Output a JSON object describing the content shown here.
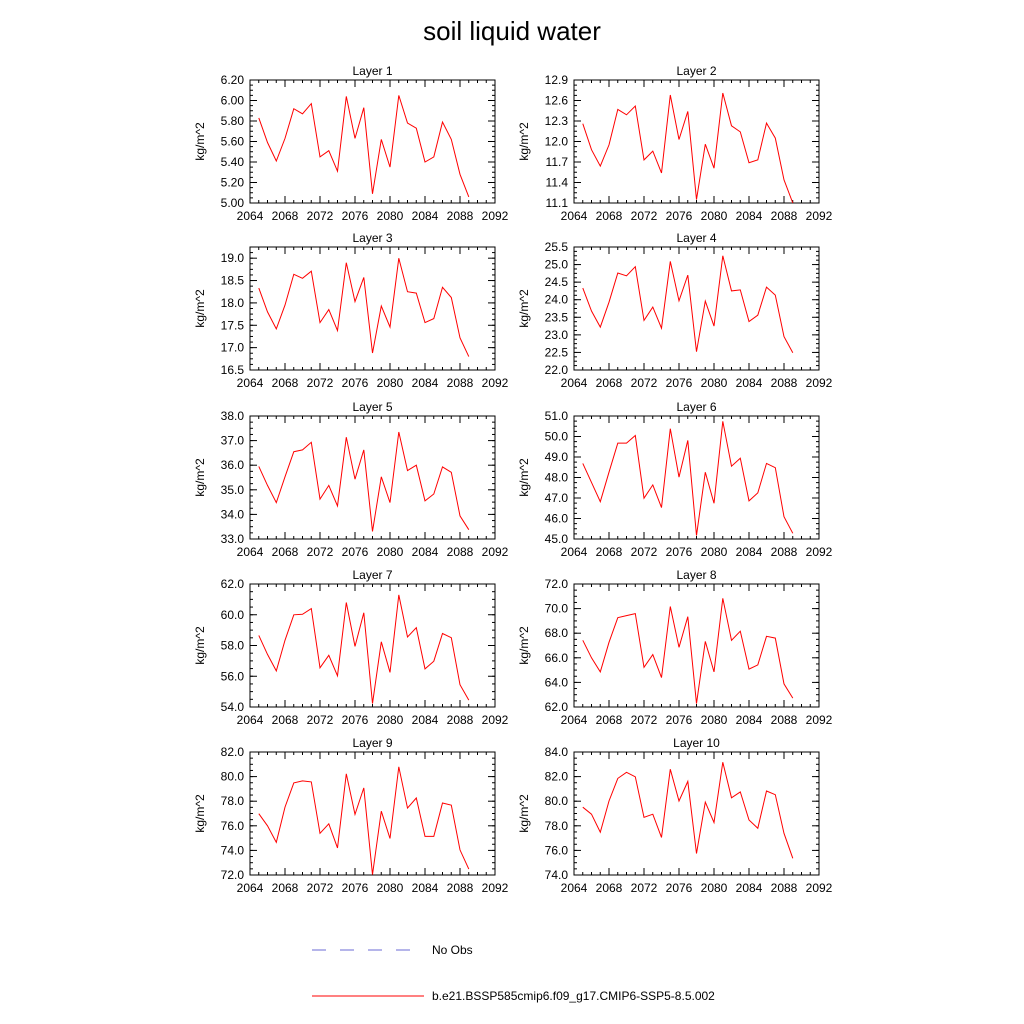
{
  "figure": {
    "title": "soil liquid water",
    "legend": [
      {
        "label": "No Obs",
        "color": "#6b6bd6",
        "style": "dashed"
      },
      {
        "label": "b.e21.BSSP585cmip6.f09_g17.CMIP6-SSP5-8.5.002",
        "color": "#ff0000",
        "style": "solid"
      }
    ]
  },
  "chart_data": [
    {
      "type": "line",
      "title": "Layer 1",
      "ylabel": "kg/m^2",
      "xlim": [
        2064,
        2092
      ],
      "ylim": [
        5.0,
        6.2
      ],
      "decimals": 2,
      "yticks": [
        5.0,
        5.2,
        5.4,
        5.6,
        5.8,
        6.0,
        6.2
      ],
      "xticks": [
        2064,
        2068,
        2072,
        2076,
        2080,
        2084,
        2088,
        2092
      ],
      "x": [
        2065,
        2066,
        2067,
        2068,
        2069,
        2070,
        2071,
        2072,
        2073,
        2074,
        2075,
        2076,
        2077,
        2078,
        2079,
        2080,
        2081,
        2082,
        2083,
        2084,
        2085,
        2086,
        2087,
        2088,
        2089
      ],
      "y": [
        5.83,
        5.59,
        5.41,
        5.63,
        5.92,
        5.87,
        5.97,
        5.45,
        5.51,
        5.31,
        6.04,
        5.63,
        5.93,
        5.09,
        5.62,
        5.35,
        6.05,
        5.78,
        5.73,
        5.4,
        5.45,
        5.79,
        5.62,
        5.28,
        5.06
      ]
    },
    {
      "type": "line",
      "title": "Layer 2",
      "ylabel": "kg/m^2",
      "xlim": [
        2064,
        2092
      ],
      "ylim": [
        11.1,
        12.9
      ],
      "decimals": 1,
      "yticks": [
        11.1,
        11.4,
        11.7,
        12.0,
        12.3,
        12.6,
        12.9
      ],
      "xticks": [
        2064,
        2068,
        2072,
        2076,
        2080,
        2084,
        2088,
        2092
      ],
      "x": [
        2065,
        2066,
        2067,
        2068,
        2069,
        2070,
        2071,
        2072,
        2073,
        2074,
        2075,
        2076,
        2077,
        2078,
        2079,
        2080,
        2081,
        2082,
        2083,
        2084,
        2085,
        2086,
        2087,
        2088,
        2089
      ],
      "y": [
        12.26,
        11.88,
        11.64,
        11.95,
        12.47,
        12.39,
        12.52,
        11.73,
        11.86,
        11.54,
        12.68,
        12.03,
        12.44,
        11.15,
        11.96,
        11.61,
        12.71,
        12.23,
        12.14,
        11.69,
        11.73,
        12.27,
        12.05,
        11.44,
        11.1
      ]
    },
    {
      "type": "line",
      "title": "Layer 3",
      "ylabel": "kg/m^2",
      "xlim": [
        2064,
        2092
      ],
      "ylim": [
        16.5,
        19.25
      ],
      "decimals": 1,
      "yticks": [
        16.5,
        17.0,
        17.5,
        18.0,
        18.5,
        19.0
      ],
      "xticks": [
        2064,
        2068,
        2072,
        2076,
        2080,
        2084,
        2088,
        2092
      ],
      "x": [
        2065,
        2066,
        2067,
        2068,
        2069,
        2070,
        2071,
        2072,
        2073,
        2074,
        2075,
        2076,
        2077,
        2078,
        2079,
        2080,
        2081,
        2082,
        2083,
        2084,
        2085,
        2086,
        2087,
        2088,
        2089
      ],
      "y": [
        18.33,
        17.8,
        17.42,
        17.95,
        18.64,
        18.55,
        18.71,
        17.56,
        17.85,
        17.38,
        18.9,
        18.03,
        18.57,
        16.88,
        17.93,
        17.46,
        19.0,
        18.25,
        18.22,
        17.56,
        17.65,
        18.35,
        18.12,
        17.22,
        16.8
      ]
    },
    {
      "type": "line",
      "title": "Layer 4",
      "ylabel": "kg/m^2",
      "xlim": [
        2064,
        2092
      ],
      "ylim": [
        22.0,
        25.5
      ],
      "decimals": 1,
      "yticks": [
        22.0,
        22.5,
        23.0,
        23.5,
        24.0,
        24.5,
        25.0,
        25.5
      ],
      "xticks": [
        2064,
        2068,
        2072,
        2076,
        2080,
        2084,
        2088,
        2092
      ],
      "x": [
        2065,
        2066,
        2067,
        2068,
        2069,
        2070,
        2071,
        2072,
        2073,
        2074,
        2075,
        2076,
        2077,
        2078,
        2079,
        2080,
        2081,
        2082,
        2083,
        2084,
        2085,
        2086,
        2087,
        2088,
        2089
      ],
      "y": [
        24.33,
        23.68,
        23.22,
        23.93,
        24.76,
        24.68,
        24.94,
        23.41,
        23.79,
        23.19,
        25.09,
        23.97,
        24.7,
        22.52,
        23.96,
        23.25,
        25.25,
        24.25,
        24.28,
        23.38,
        23.56,
        24.36,
        24.13,
        22.95,
        22.49
      ]
    },
    {
      "type": "line",
      "title": "Layer 5",
      "ylabel": "kg/m^2",
      "xlim": [
        2064,
        2092
      ],
      "ylim": [
        33.0,
        38.0
      ],
      "decimals": 1,
      "yticks": [
        33.0,
        34.0,
        35.0,
        36.0,
        37.0,
        38.0
      ],
      "xticks": [
        2064,
        2068,
        2072,
        2076,
        2080,
        2084,
        2088,
        2092
      ],
      "x": [
        2065,
        2066,
        2067,
        2068,
        2069,
        2070,
        2071,
        2072,
        2073,
        2074,
        2075,
        2076,
        2077,
        2078,
        2079,
        2080,
        2081,
        2082,
        2083,
        2084,
        2085,
        2086,
        2087,
        2088,
        2089
      ],
      "y": [
        35.95,
        35.18,
        34.48,
        35.53,
        36.55,
        36.62,
        36.93,
        34.62,
        35.18,
        34.34,
        37.14,
        35.43,
        36.62,
        33.31,
        35.53,
        34.48,
        37.35,
        35.78,
        36.0,
        34.55,
        34.83,
        35.93,
        35.71,
        33.94,
        33.38
      ]
    },
    {
      "type": "line",
      "title": "Layer 6",
      "ylabel": "kg/m^2",
      "xlim": [
        2064,
        2092
      ],
      "ylim": [
        45.0,
        51.0
      ],
      "decimals": 1,
      "yticks": [
        45.0,
        46.0,
        47.0,
        48.0,
        49.0,
        50.0,
        51.0
      ],
      "xticks": [
        2064,
        2068,
        2072,
        2076,
        2080,
        2084,
        2088,
        2092
      ],
      "x": [
        2065,
        2066,
        2067,
        2068,
        2069,
        2070,
        2071,
        2072,
        2073,
        2074,
        2075,
        2076,
        2077,
        2078,
        2079,
        2080,
        2081,
        2082,
        2083,
        2084,
        2085,
        2086,
        2087,
        2088,
        2089
      ],
      "y": [
        48.69,
        47.76,
        46.82,
        48.26,
        49.68,
        49.68,
        50.05,
        46.99,
        47.64,
        46.53,
        50.38,
        48.02,
        49.81,
        45.17,
        48.26,
        46.74,
        50.74,
        48.55,
        48.94,
        46.86,
        47.25,
        48.69,
        48.48,
        46.09,
        45.28
      ]
    },
    {
      "type": "line",
      "title": "Layer 7",
      "ylabel": "kg/m^2",
      "xlim": [
        2064,
        2092
      ],
      "ylim": [
        54.0,
        62.0
      ],
      "decimals": 1,
      "yticks": [
        54.0,
        56.0,
        58.0,
        60.0,
        62.0
      ],
      "xticks": [
        2064,
        2068,
        2072,
        2076,
        2080,
        2084,
        2088,
        2092
      ],
      "x": [
        2065,
        2066,
        2067,
        2068,
        2069,
        2070,
        2071,
        2072,
        2073,
        2074,
        2075,
        2076,
        2077,
        2078,
        2079,
        2080,
        2081,
        2082,
        2083,
        2084,
        2085,
        2086,
        2087,
        2088,
        2089
      ],
      "y": [
        58.66,
        57.42,
        56.35,
        58.34,
        60.0,
        60.03,
        60.4,
        56.55,
        57.36,
        56.03,
        60.8,
        57.94,
        60.13,
        54.23,
        58.24,
        56.25,
        61.29,
        58.55,
        59.16,
        56.48,
        56.98,
        58.78,
        58.51,
        55.45,
        54.45
      ]
    },
    {
      "type": "line",
      "title": "Layer 8",
      "ylabel": "kg/m^2",
      "xlim": [
        2064,
        2092
      ],
      "ylim": [
        62.0,
        72.0
      ],
      "decimals": 1,
      "yticks": [
        62.0,
        64.0,
        66.0,
        68.0,
        70.0,
        72.0
      ],
      "xticks": [
        2064,
        2068,
        2072,
        2076,
        2080,
        2084,
        2088,
        2092
      ],
      "x": [
        2065,
        2066,
        2067,
        2068,
        2069,
        2070,
        2071,
        2072,
        2073,
        2074,
        2075,
        2076,
        2077,
        2078,
        2079,
        2080,
        2081,
        2082,
        2083,
        2084,
        2085,
        2086,
        2087,
        2088,
        2089
      ],
      "y": [
        67.42,
        66.0,
        64.85,
        67.26,
        69.26,
        69.43,
        69.59,
        65.23,
        66.26,
        64.39,
        70.17,
        66.85,
        69.34,
        62.28,
        67.33,
        64.85,
        70.84,
        67.42,
        68.16,
        65.08,
        65.42,
        67.75,
        67.6,
        63.88,
        62.72
      ]
    },
    {
      "type": "line",
      "title": "Layer 9",
      "ylabel": "kg/m^2",
      "xlim": [
        2064,
        2092
      ],
      "ylim": [
        72.0,
        82.0
      ],
      "decimals": 1,
      "yticks": [
        72.0,
        74.0,
        76.0,
        78.0,
        80.0,
        82.0
      ],
      "xticks": [
        2064,
        2068,
        2072,
        2076,
        2080,
        2084,
        2088,
        2092
      ],
      "x": [
        2065,
        2066,
        2067,
        2068,
        2069,
        2070,
        2071,
        2072,
        2073,
        2074,
        2075,
        2076,
        2077,
        2078,
        2079,
        2080,
        2081,
        2082,
        2083,
        2084,
        2085,
        2086,
        2087,
        2088,
        2089
      ],
      "y": [
        76.98,
        76.0,
        74.65,
        77.52,
        79.49,
        79.65,
        79.57,
        75.39,
        76.16,
        74.2,
        80.23,
        76.93,
        79.08,
        72.03,
        77.19,
        74.97,
        80.8,
        77.44,
        78.26,
        75.14,
        75.14,
        77.85,
        77.68,
        74.04,
        72.48
      ]
    },
    {
      "type": "line",
      "title": "Layer 10",
      "ylabel": "kg/m^2",
      "xlim": [
        2064,
        2092
      ],
      "ylim": [
        74.0,
        84.0
      ],
      "decimals": 1,
      "yticks": [
        74.0,
        76.0,
        78.0,
        80.0,
        82.0,
        84.0
      ],
      "xticks": [
        2064,
        2068,
        2072,
        2076,
        2080,
        2084,
        2088,
        2092
      ],
      "x": [
        2065,
        2066,
        2067,
        2068,
        2069,
        2070,
        2071,
        2072,
        2073,
        2074,
        2075,
        2076,
        2077,
        2078,
        2079,
        2080,
        2081,
        2082,
        2083,
        2084,
        2085,
        2086,
        2087,
        2088,
        2089
      ],
      "y": [
        79.51,
        78.94,
        77.48,
        80.02,
        81.85,
        82.35,
        81.98,
        78.69,
        78.94,
        77.06,
        82.6,
        80.02,
        81.61,
        75.75,
        79.93,
        78.27,
        83.17,
        80.28,
        80.76,
        78.47,
        77.8,
        80.83,
        80.53,
        77.39,
        75.36
      ]
    }
  ]
}
